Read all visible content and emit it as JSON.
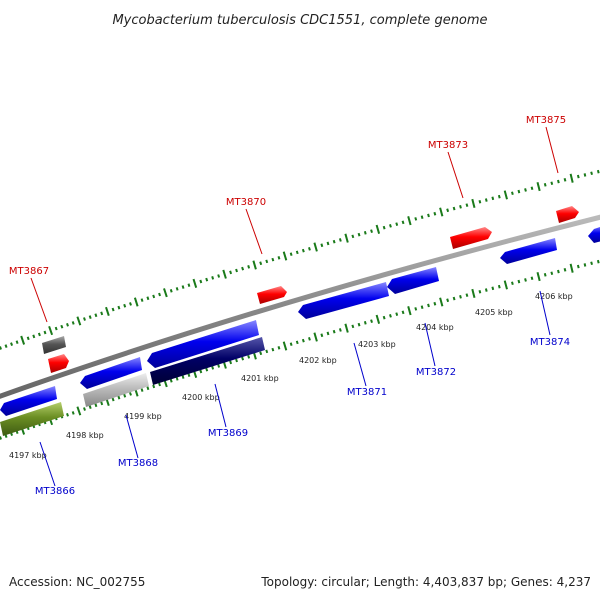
{
  "title": "Mycobacterium tuberculosis CDC1551, complete genome",
  "footer": {
    "accession": "Accession: NC_002755",
    "topology": "Topology: circular; Length: 4,403,837 bp; Genes: 4,237"
  },
  "colors": {
    "forward_gene": "#ff0000",
    "forward_label": "#cc0000",
    "reverse_gene": "#0000ee",
    "reverse_label": "#0000cc",
    "tick": "#1a7a1a",
    "backbone": "#888888",
    "dark_blue": "#000066",
    "gray_gene": "#555555",
    "light_gray_gene": "#bbbbbb",
    "olive_gene": "#6b8e23"
  },
  "tick_labels": [
    "4197 kbp",
    "4198 kbp",
    "4199 kbp",
    "4200 kbp",
    "4201 kbp",
    "4202 kbp",
    "4203 kbp",
    "4204 kbp",
    "4205 kbp",
    "4206 kbp"
  ],
  "gene_labels": {
    "forward": [
      "MT3867",
      "MT3870",
      "MT3873",
      "MT3875"
    ],
    "reverse": [
      "MT3866",
      "MT3868",
      "MT3869",
      "MT3871",
      "MT3872",
      "MT3874"
    ]
  }
}
